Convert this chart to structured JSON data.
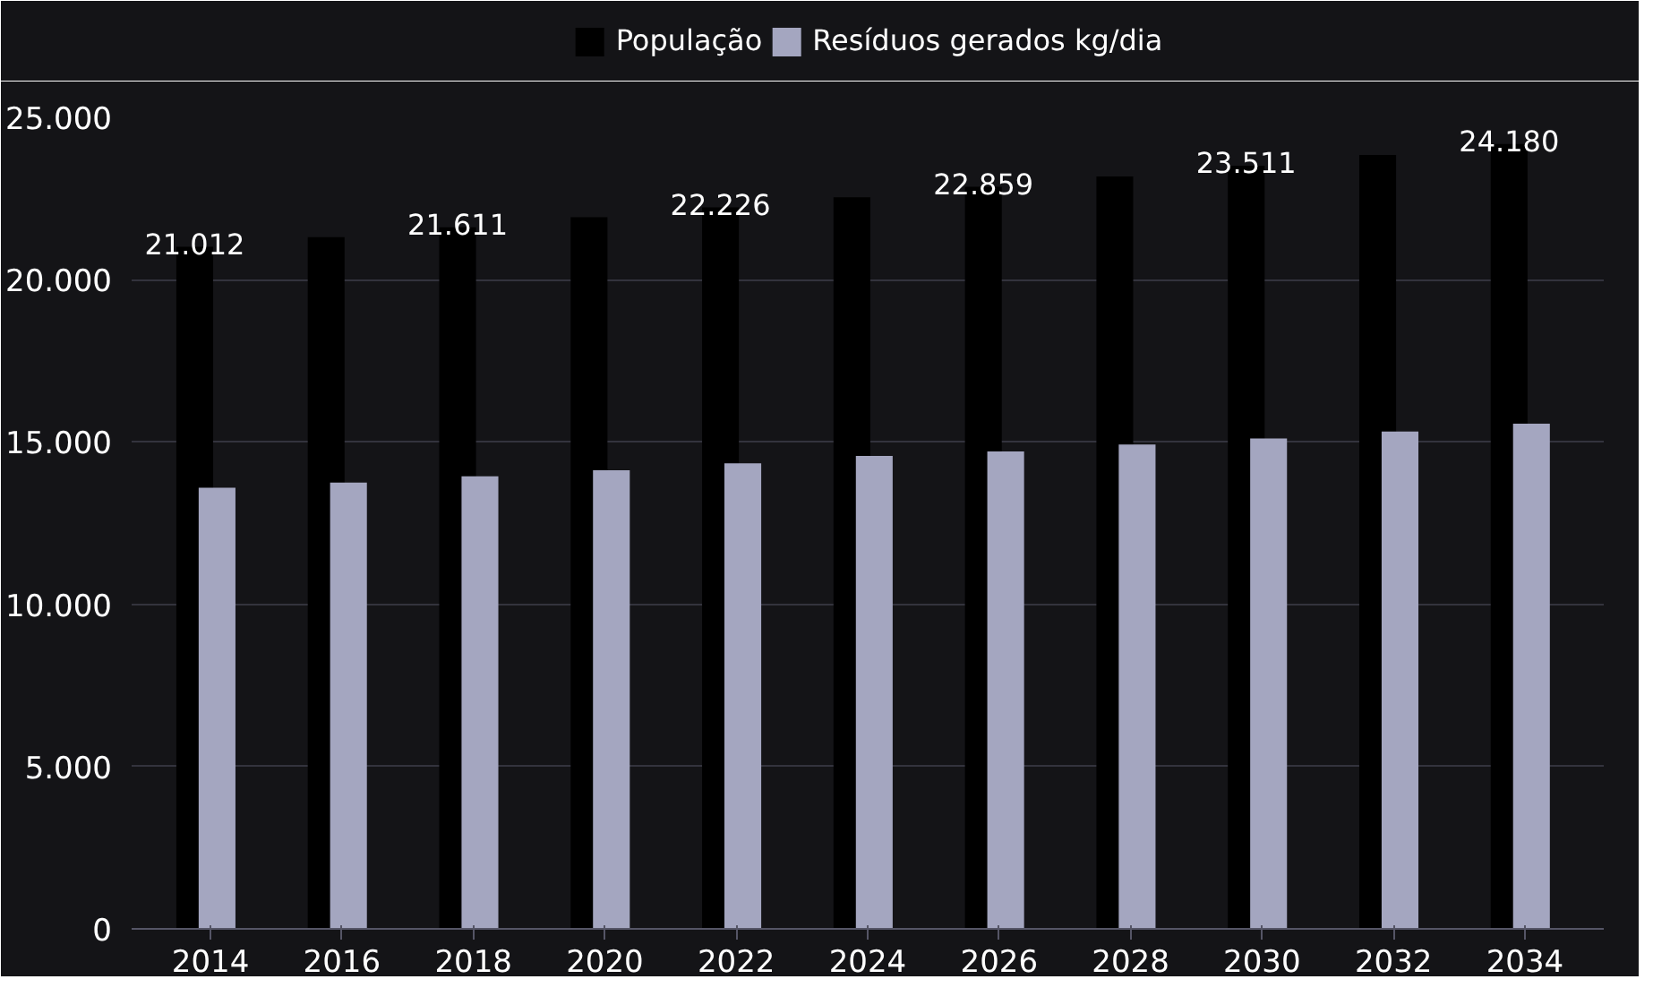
{
  "chart_data": {
    "type": "bar",
    "categories": [
      "2014",
      "2016",
      "2018",
      "2020",
      "2022",
      "2024",
      "2026",
      "2028",
      "2030",
      "2032",
      "2034"
    ],
    "series": [
      {
        "name": "População",
        "color": "#000000",
        "values": [
          21012,
          21310,
          21611,
          21920,
          22226,
          22540,
          22859,
          23180,
          23511,
          23840,
          24180
        ],
        "value_labels": [
          "21.012",
          null,
          "21.611",
          null,
          "22.226",
          null,
          "22.859",
          null,
          "23.511",
          null,
          "24.180"
        ]
      },
      {
        "name": "Resíduos gerados kg/dia",
        "color": "#a4a6c0",
        "values": [
          13590,
          13750,
          13940,
          14130,
          14340,
          14570,
          14710,
          14920,
          15110,
          15320,
          15560
        ]
      }
    ],
    "ylim": [
      0,
      25000
    ],
    "yticks": [
      0,
      {
        "value": 5000,
        "label": "5.000"
      },
      {
        "value": 10000,
        "label": "10.000"
      },
      {
        "value": 15000,
        "label": "15.000"
      },
      {
        "value": 20000,
        "label": "20.000"
      },
      {
        "value": 25000,
        "label": "25.000"
      }
    ],
    "grid": "y",
    "legend": "top"
  }
}
